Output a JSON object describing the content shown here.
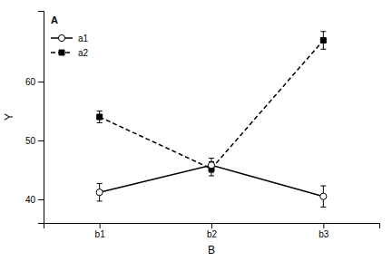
{
  "chart_data": {
    "type": "line",
    "xlabel": "B",
    "ylabel": "Y",
    "legend_title": "A",
    "categories": [
      "b1",
      "b2",
      "b3"
    ],
    "series": [
      {
        "name": "a1",
        "color": "#000000",
        "marker": "circle",
        "line_style": "solid",
        "values": [
          41.2,
          45.8,
          40.5
        ],
        "errors": [
          1.5,
          1.2,
          1.8
        ]
      },
      {
        "name": "a2",
        "color": "#000000",
        "marker": "square",
        "line_style": "dashed",
        "values": [
          54.0,
          45.2,
          67.0
        ],
        "errors": [
          1.0,
          1.2,
          1.5
        ]
      }
    ],
    "ylim": [
      36,
      72
    ],
    "yticks": [
      40,
      50,
      60
    ],
    "grid": false,
    "legend": "upper left"
  }
}
